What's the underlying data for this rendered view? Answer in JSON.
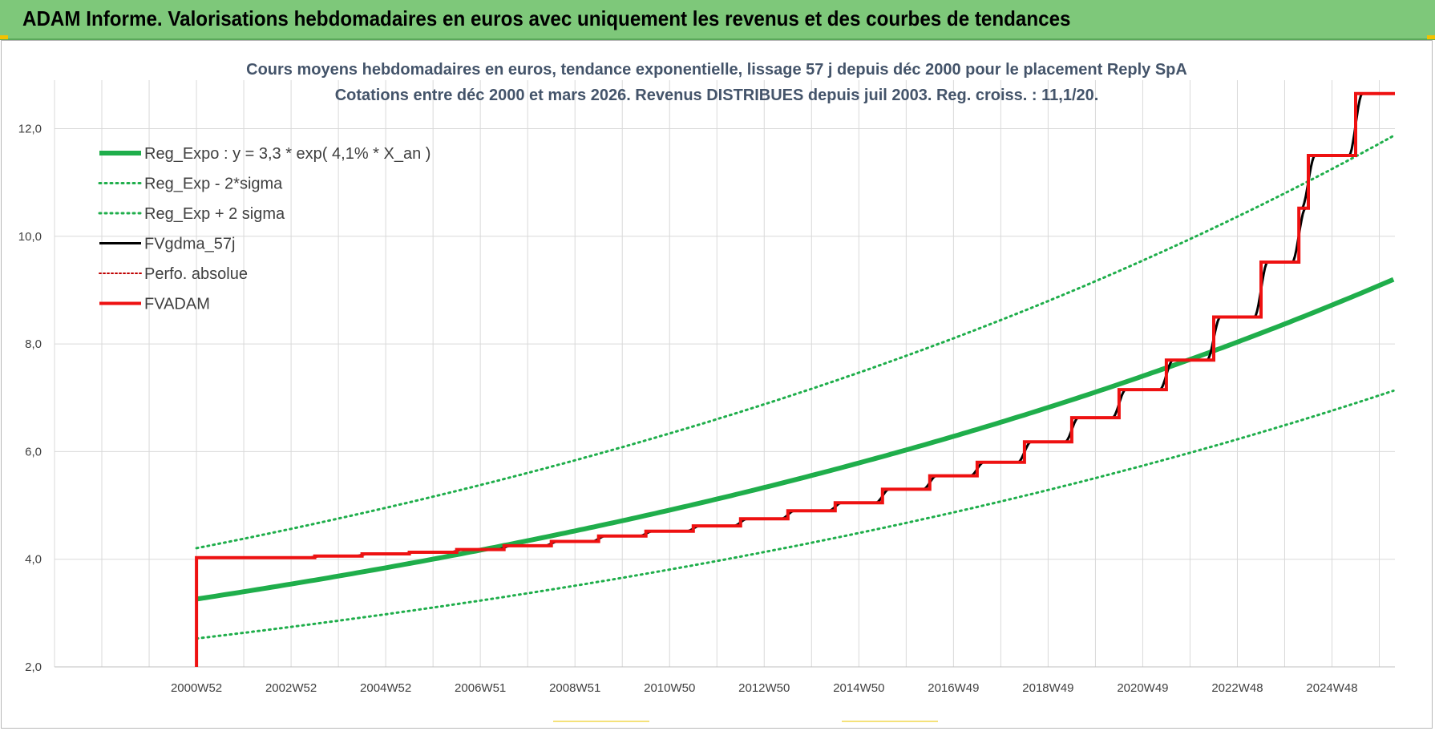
{
  "banner": {
    "title": "ADAM Informe. Valorisations hebdomadaires en euros avec uniquement les revenus et des courbes de tendances"
  },
  "colors": {
    "banner_bg": "#7ec87a",
    "trend_green": "#1fae4b",
    "fvgdma_black": "#000000",
    "fvadam_red": "#ee1111",
    "perfo_red": "#c00000",
    "grid": "#d9d9d9"
  },
  "chart_data": {
    "type": "line",
    "title": [
      "Cours moyens hebdomadaires en euros, tendance exponentielle, lissage 57 j depuis déc 2000 pour le placement Reply SpA",
      "Cotations entre déc 2000 et mars 2026.  Revenus DISTRIBUES depuis juil 2003.  Reg. croiss. : 11,1/20."
    ],
    "xlabel": "",
    "ylabel": "",
    "ylim": [
      2.0,
      12.9
    ],
    "xlim": [
      1998.0,
      2026.33
    ],
    "grid": true,
    "legend_position": "top-left",
    "y_ticks": [
      "2,0",
      "4,0",
      "6,0",
      "8,0",
      "10,0",
      "12,0"
    ],
    "y_tick_values": [
      2,
      4,
      6,
      8,
      10,
      12
    ],
    "x_ticks": [
      "2000W52",
      "2002W52",
      "2004W52",
      "2006W51",
      "2008W51",
      "2010W50",
      "2012W50",
      "2014W50",
      "2016W49",
      "2018W49",
      "2020W49",
      "2022W48",
      "2024W48"
    ],
    "x_tick_values": [
      2001,
      2003,
      2005,
      2007,
      2009,
      2011,
      2013,
      2015,
      2017,
      2019,
      2021,
      2023,
      2025
    ],
    "trend": {
      "a": 3.26,
      "r": 0.041,
      "x0": 2001,
      "x_end": 2026.33,
      "sigma_factor": 1.29
    },
    "series": [
      {
        "name": "Reg_Expo : y = 3,3 * exp( 4,1% *  X_an )",
        "kind": "trend",
        "style": "solid",
        "color": "#1fae4b"
      },
      {
        "name": "Reg_Exp - 2*sigma",
        "kind": "trend_minus",
        "style": "dotted",
        "color": "#1fae4b"
      },
      {
        "name": "Reg_Exp + 2 sigma",
        "kind": "trend_plus",
        "style": "dotted",
        "color": "#1fae4b"
      },
      {
        "name": "FVgdma_57j",
        "kind": "smooth",
        "style": "solid",
        "color": "#000000"
      },
      {
        "name": "Perfo. absolue",
        "kind": "none",
        "style": "dotted",
        "color": "#c00000"
      },
      {
        "name": "FVADAM",
        "kind": "step",
        "style": "solid",
        "color": "#ee1111",
        "start": {
          "x": 2001.0,
          "y": 2.0
        },
        "points": [
          [
            2001.0,
            4.03
          ],
          [
            2003.5,
            4.03
          ],
          [
            2003.5,
            4.06
          ],
          [
            2004.5,
            4.06
          ],
          [
            2004.5,
            4.1
          ],
          [
            2005.5,
            4.1
          ],
          [
            2005.5,
            4.13
          ],
          [
            2006.5,
            4.13
          ],
          [
            2006.5,
            4.18
          ],
          [
            2007.5,
            4.18
          ],
          [
            2007.5,
            4.25
          ],
          [
            2008.5,
            4.25
          ],
          [
            2008.5,
            4.33
          ],
          [
            2009.5,
            4.33
          ],
          [
            2009.5,
            4.43
          ],
          [
            2010.5,
            4.43
          ],
          [
            2010.5,
            4.52
          ],
          [
            2011.5,
            4.52
          ],
          [
            2011.5,
            4.62
          ],
          [
            2012.5,
            4.62
          ],
          [
            2012.5,
            4.75
          ],
          [
            2013.5,
            4.75
          ],
          [
            2013.5,
            4.9
          ],
          [
            2014.5,
            4.9
          ],
          [
            2014.5,
            5.05
          ],
          [
            2015.5,
            5.05
          ],
          [
            2015.5,
            5.3
          ],
          [
            2016.5,
            5.3
          ],
          [
            2016.5,
            5.55
          ],
          [
            2017.5,
            5.55
          ],
          [
            2017.5,
            5.8
          ],
          [
            2018.5,
            5.8
          ],
          [
            2018.5,
            6.18
          ],
          [
            2019.5,
            6.18
          ],
          [
            2019.5,
            6.63
          ],
          [
            2020.5,
            6.63
          ],
          [
            2020.5,
            7.15
          ],
          [
            2021.5,
            7.15
          ],
          [
            2021.5,
            7.7
          ],
          [
            2022.5,
            7.7
          ],
          [
            2022.5,
            8.5
          ],
          [
            2023.5,
            8.5
          ],
          [
            2023.5,
            9.52
          ],
          [
            2024.3,
            9.52
          ],
          [
            2024.3,
            10.52
          ],
          [
            2024.5,
            10.52
          ],
          [
            2024.5,
            11.5
          ],
          [
            2025.5,
            11.5
          ],
          [
            2025.5,
            12.65
          ],
          [
            2026.33,
            12.65
          ]
        ]
      }
    ]
  }
}
